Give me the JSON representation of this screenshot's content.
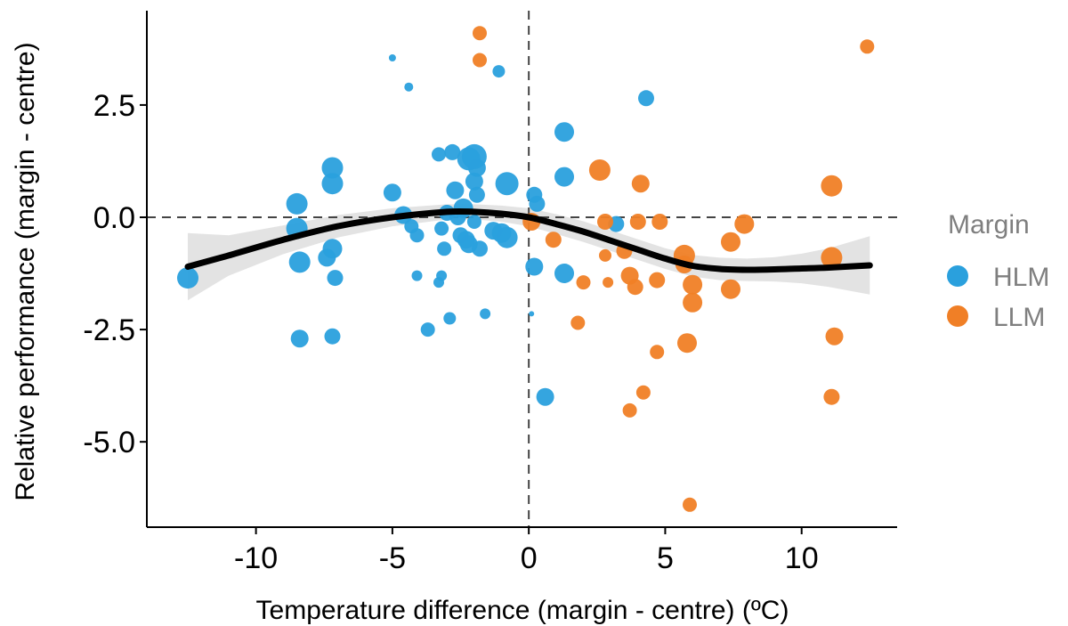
{
  "chart_data": {
    "type": "scatter",
    "xlabel": "Temperature difference (margin - centre) (ºC)",
    "ylabel": "Relative performance (margin - centre)",
    "xlim": [
      -14,
      13.5
    ],
    "ylim": [
      -6.9,
      4.6
    ],
    "x_ticks": [
      -10,
      -5,
      0,
      5,
      10
    ],
    "x_tick_labels": [
      "-10",
      "-5",
      "0",
      "5",
      "10"
    ],
    "y_ticks": [
      2.5,
      0.0,
      -2.5,
      -5.0
    ],
    "y_tick_labels": [
      "2.5",
      "0.0",
      "-2.5",
      "-5.0"
    ],
    "reference_lines": {
      "x": 0,
      "y": 0,
      "style": "dashed"
    },
    "grid": false,
    "legend": {
      "title": "Margin",
      "placement": "right",
      "entries": [
        {
          "label": "HLM",
          "color": "#2aa0dd"
        },
        {
          "label": "LLM",
          "color": "#f07f26"
        }
      ]
    },
    "series": [
      {
        "name": "HLM",
        "color": "#2aa0dd",
        "points": [
          {
            "x": -12.5,
            "y": -1.35,
            "size": 12
          },
          {
            "x": -8.5,
            "y": 0.3,
            "size": 12
          },
          {
            "x": -8.5,
            "y": -0.25,
            "size": 12
          },
          {
            "x": -8.4,
            "y": -1.0,
            "size": 12
          },
          {
            "x": -8.4,
            "y": -2.7,
            "size": 10
          },
          {
            "x": -7.2,
            "y": 1.1,
            "size": 12
          },
          {
            "x": -7.2,
            "y": 0.75,
            "size": 12
          },
          {
            "x": -7.2,
            "y": -0.7,
            "size": 11
          },
          {
            "x": -7.4,
            "y": -0.9,
            "size": 10
          },
          {
            "x": -7.1,
            "y": -1.35,
            "size": 9
          },
          {
            "x": -7.2,
            "y": -2.65,
            "size": 9
          },
          {
            "x": -5.0,
            "y": 3.55,
            "size": 4
          },
          {
            "x": -4.4,
            "y": 2.9,
            "size": 5
          },
          {
            "x": -5.0,
            "y": 0.55,
            "size": 10
          },
          {
            "x": -4.6,
            "y": 0.05,
            "size": 10
          },
          {
            "x": -4.3,
            "y": -0.2,
            "size": 8
          },
          {
            "x": -4.1,
            "y": -0.4,
            "size": 8
          },
          {
            "x": -4.1,
            "y": -1.3,
            "size": 6
          },
          {
            "x": -3.7,
            "y": -2.5,
            "size": 8
          },
          {
            "x": -3.3,
            "y": 1.4,
            "size": 8
          },
          {
            "x": -3.0,
            "y": 0.1,
            "size": 9
          },
          {
            "x": -3.2,
            "y": -0.25,
            "size": 8
          },
          {
            "x": -3.1,
            "y": -0.7,
            "size": 8
          },
          {
            "x": -3.2,
            "y": -1.3,
            "size": 6
          },
          {
            "x": -3.3,
            "y": -1.45,
            "size": 6
          },
          {
            "x": -2.9,
            "y": -2.25,
            "size": 7
          },
          {
            "x": -2.8,
            "y": 1.45,
            "size": 9
          },
          {
            "x": -2.7,
            "y": 0.6,
            "size": 10
          },
          {
            "x": -2.6,
            "y": 0.0,
            "size": 9
          },
          {
            "x": -2.5,
            "y": -0.4,
            "size": 9
          },
          {
            "x": -2.4,
            "y": 0.2,
            "size": 11
          },
          {
            "x": -2.3,
            "y": -0.5,
            "size": 10
          },
          {
            "x": -2.2,
            "y": 1.3,
            "size": 13
          },
          {
            "x": -2.0,
            "y": 1.35,
            "size": 14
          },
          {
            "x": -2.0,
            "y": 0.8,
            "size": 10
          },
          {
            "x": -1.9,
            "y": 1.1,
            "size": 10
          },
          {
            "x": -1.9,
            "y": 0.5,
            "size": 9
          },
          {
            "x": -2.0,
            "y": -0.1,
            "size": 8
          },
          {
            "x": -2.2,
            "y": -0.6,
            "size": 10
          },
          {
            "x": -1.8,
            "y": -0.7,
            "size": 9
          },
          {
            "x": -1.6,
            "y": -2.15,
            "size": 6
          },
          {
            "x": -1.3,
            "y": -0.3,
            "size": 10
          },
          {
            "x": -1.1,
            "y": 3.25,
            "size": 7
          },
          {
            "x": -1.0,
            "y": -0.35,
            "size": 11
          },
          {
            "x": -0.8,
            "y": 0.75,
            "size": 13
          },
          {
            "x": -0.8,
            "y": -0.45,
            "size": 12
          },
          {
            "x": 0.1,
            "y": -2.15,
            "size": 3
          },
          {
            "x": 0.2,
            "y": 0.5,
            "size": 9
          },
          {
            "x": 0.3,
            "y": 0.3,
            "size": 9
          },
          {
            "x": 0.2,
            "y": -1.1,
            "size": 10
          },
          {
            "x": 0.6,
            "y": -4.0,
            "size": 10
          },
          {
            "x": 1.3,
            "y": 1.9,
            "size": 11
          },
          {
            "x": 1.3,
            "y": 0.9,
            "size": 11
          },
          {
            "x": 1.3,
            "y": -1.25,
            "size": 11
          },
          {
            "x": 3.2,
            "y": -0.15,
            "size": 9
          },
          {
            "x": 4.3,
            "y": 2.65,
            "size": 9
          }
        ]
      },
      {
        "name": "LLM",
        "color": "#f07f26",
        "points": [
          {
            "x": -1.8,
            "y": 4.1,
            "size": 8
          },
          {
            "x": -1.8,
            "y": 3.5,
            "size": 8
          },
          {
            "x": 0.1,
            "y": -0.1,
            "size": 10
          },
          {
            "x": 0.9,
            "y": -0.5,
            "size": 9
          },
          {
            "x": 1.8,
            "y": -2.35,
            "size": 8
          },
          {
            "x": 2.0,
            "y": -1.45,
            "size": 8
          },
          {
            "x": 2.6,
            "y": 1.05,
            "size": 12
          },
          {
            "x": 2.8,
            "y": -0.1,
            "size": 9
          },
          {
            "x": 2.8,
            "y": -0.85,
            "size": 7
          },
          {
            "x": 2.9,
            "y": -1.45,
            "size": 6
          },
          {
            "x": 3.5,
            "y": -0.75,
            "size": 9
          },
          {
            "x": 3.7,
            "y": -1.3,
            "size": 10
          },
          {
            "x": 3.7,
            "y": -4.3,
            "size": 8
          },
          {
            "x": 3.9,
            "y": -1.55,
            "size": 9
          },
          {
            "x": 4.0,
            "y": -0.1,
            "size": 9
          },
          {
            "x": 4.1,
            "y": 0.75,
            "size": 10
          },
          {
            "x": 4.2,
            "y": -3.9,
            "size": 8
          },
          {
            "x": 4.7,
            "y": -1.4,
            "size": 9
          },
          {
            "x": 4.7,
            "y": -3.0,
            "size": 8
          },
          {
            "x": 4.8,
            "y": -0.1,
            "size": 9
          },
          {
            "x": 5.7,
            "y": -0.85,
            "size": 12
          },
          {
            "x": 5.7,
            "y": -1.05,
            "size": 10
          },
          {
            "x": 5.8,
            "y": -2.8,
            "size": 11
          },
          {
            "x": 6.0,
            "y": -1.5,
            "size": 11
          },
          {
            "x": 6.0,
            "y": -1.9,
            "size": 11
          },
          {
            "x": 5.9,
            "y": -6.4,
            "size": 8
          },
          {
            "x": 7.4,
            "y": -0.55,
            "size": 11
          },
          {
            "x": 7.4,
            "y": -1.6,
            "size": 11
          },
          {
            "x": 7.9,
            "y": -0.15,
            "size": 11
          },
          {
            "x": 11.1,
            "y": 0.7,
            "size": 12
          },
          {
            "x": 11.1,
            "y": -0.9,
            "size": 12
          },
          {
            "x": 11.1,
            "y": -4.0,
            "size": 9
          },
          {
            "x": 11.2,
            "y": -2.65,
            "size": 10
          },
          {
            "x": 12.4,
            "y": 3.8,
            "size": 8
          }
        ]
      }
    ],
    "trend": {
      "color": "#000000",
      "band_color": "#d9d9d9",
      "points": [
        {
          "x": -12.5,
          "y": -1.1,
          "lo": -1.85,
          "hi": -0.35
        },
        {
          "x": -11.0,
          "y": -0.85,
          "lo": -1.3,
          "hi": -0.4
        },
        {
          "x": -9.0,
          "y": -0.5,
          "lo": -0.82,
          "hi": -0.18
        },
        {
          "x": -7.0,
          "y": -0.2,
          "lo": -0.45,
          "hi": 0.05
        },
        {
          "x": -5.0,
          "y": 0.0,
          "lo": -0.2,
          "hi": 0.2
        },
        {
          "x": -3.0,
          "y": 0.12,
          "lo": -0.05,
          "hi": 0.29
        },
        {
          "x": -2.0,
          "y": 0.12,
          "lo": -0.05,
          "hi": 0.29
        },
        {
          "x": -1.0,
          "y": 0.08,
          "lo": -0.1,
          "hi": 0.26
        },
        {
          "x": 0.0,
          "y": 0.0,
          "lo": -0.2,
          "hi": 0.2
        },
        {
          "x": 1.0,
          "y": -0.15,
          "lo": -0.37,
          "hi": 0.07
        },
        {
          "x": 2.0,
          "y": -0.32,
          "lo": -0.55,
          "hi": -0.09
        },
        {
          "x": 3.0,
          "y": -0.52,
          "lo": -0.75,
          "hi": -0.29
        },
        {
          "x": 4.0,
          "y": -0.72,
          "lo": -0.95,
          "hi": -0.49
        },
        {
          "x": 5.0,
          "y": -0.92,
          "lo": -1.15,
          "hi": -0.69
        },
        {
          "x": 6.0,
          "y": -1.08,
          "lo": -1.32,
          "hi": -0.84
        },
        {
          "x": 7.0,
          "y": -1.15,
          "lo": -1.4,
          "hi": -0.9
        },
        {
          "x": 8.0,
          "y": -1.17,
          "lo": -1.42,
          "hi": -0.92
        },
        {
          "x": 9.0,
          "y": -1.16,
          "lo": -1.43,
          "hi": -0.89
        },
        {
          "x": 10.0,
          "y": -1.14,
          "lo": -1.47,
          "hi": -0.81
        },
        {
          "x": 11.0,
          "y": -1.12,
          "lo": -1.55,
          "hi": -0.69
        },
        {
          "x": 12.5,
          "y": -1.07,
          "lo": -1.72,
          "hi": -0.42
        }
      ]
    }
  }
}
